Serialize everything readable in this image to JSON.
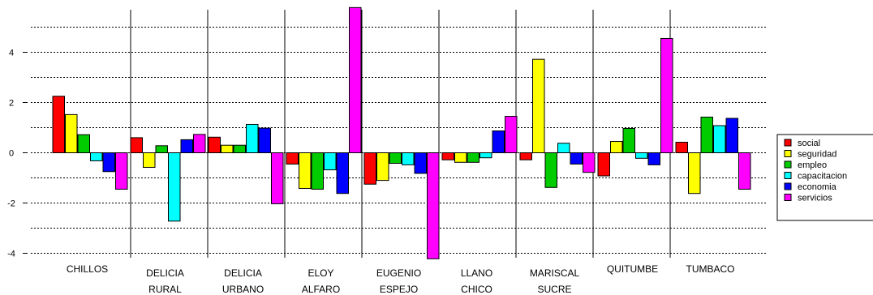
{
  "chart_data": {
    "type": "bar",
    "categories": [
      [
        "CHILLOS"
      ],
      [
        "DELICIA",
        "RURAL"
      ],
      [
        "DELICIA",
        "URBANO"
      ],
      [
        "ELOY",
        "ALFARO"
      ],
      [
        "EUGENIO",
        "ESPEJO"
      ],
      [
        "LLANO",
        "CHICO"
      ],
      [
        "MARISCAL",
        "SUCRE"
      ],
      [
        "QUITUMBE"
      ],
      [
        "TUMBACO"
      ]
    ],
    "series": [
      {
        "name": "social",
        "color": "#ff0000",
        "values": [
          2.25,
          0.6,
          0.62,
          -0.45,
          -1.25,
          -0.28,
          -0.28,
          -0.92,
          0.42
        ]
      },
      {
        "name": "seguridad",
        "color": "#ffff00",
        "values": [
          1.52,
          -0.58,
          0.3,
          -1.42,
          -1.1,
          -0.38,
          3.72,
          0.45,
          -1.62
        ]
      },
      {
        "name": "empleo",
        "color": "#00cc00",
        "values": [
          0.72,
          0.28,
          0.3,
          -1.45,
          -0.42,
          -0.38,
          -1.38,
          0.97,
          1.42
        ]
      },
      {
        "name": "capacitacion",
        "color": "#00ffff",
        "values": [
          -0.32,
          -2.72,
          1.13,
          -0.68,
          -0.48,
          -0.2,
          0.38,
          -0.22,
          1.08
        ]
      },
      {
        "name": "economia",
        "color": "#0000ff",
        "values": [
          -0.75,
          0.52,
          0.98,
          -1.62,
          -0.82,
          0.87,
          -0.45,
          -0.48,
          1.37
        ]
      },
      {
        "name": "servicios",
        "color": "#ff00ff",
        "values": [
          -1.45,
          0.73,
          -2.03,
          5.78,
          -4.22,
          1.45,
          -0.78,
          4.55,
          -1.45
        ]
      }
    ],
    "ylim": [
      -4,
      5.8
    ],
    "yticks": [
      -4,
      -2,
      0,
      2,
      4
    ],
    "grid_lines": [
      -4,
      -3,
      -2,
      -1,
      0,
      1,
      2,
      3,
      4,
      5
    ],
    "legend_position": "right",
    "title": "",
    "xlabel": "",
    "ylabel": ""
  }
}
